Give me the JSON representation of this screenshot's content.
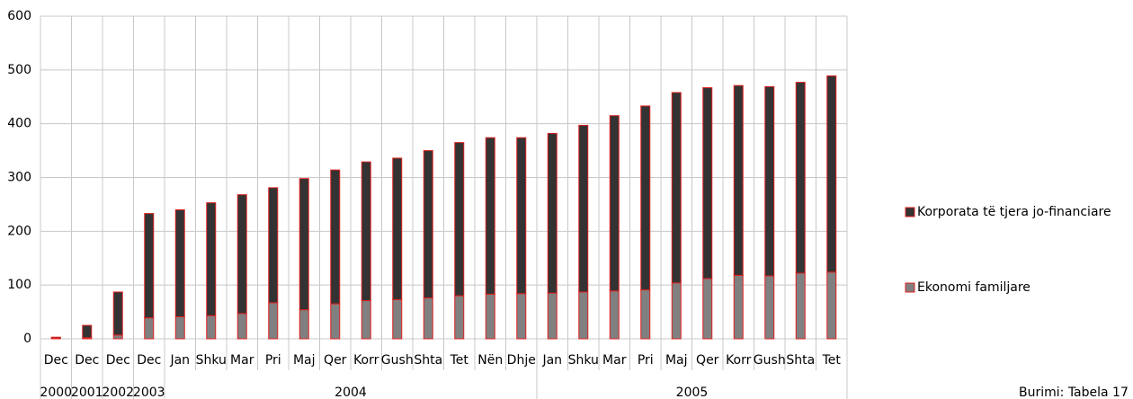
{
  "chart_data": {
    "type": "stacked-bar",
    "categories": [
      "Dec",
      "Dec",
      "Dec",
      "Dec",
      "Jan",
      "Shku",
      "Mar",
      "Pri",
      "Maj",
      "Qer",
      "Korr",
      "Gush",
      "Shta",
      "Tet",
      "Nën",
      "Dhje",
      "Jan",
      "Shku",
      "Mar",
      "Pri",
      "Maj",
      "Qer",
      "Korr",
      "Gush",
      "Shta",
      "Tet"
    ],
    "groups": [
      "2000",
      "2001",
      "2002",
      "2003",
      "2004",
      "2004",
      "2004",
      "2004",
      "2004",
      "2004",
      "2004",
      "2004",
      "2004",
      "2004",
      "2004",
      "2004",
      "2005",
      "2005",
      "2005",
      "2005",
      "2005",
      "2005",
      "2005",
      "2005",
      "2005",
      "2005"
    ],
    "series": [
      {
        "name": "Ekonomi familjare",
        "color": "#808080",
        "values": [
          1,
          2,
          7,
          39,
          41,
          43,
          47,
          67,
          54,
          65,
          71,
          73,
          76,
          80,
          83,
          84,
          85,
          87,
          89,
          91,
          104,
          112,
          118,
          117,
          122,
          124
        ]
      },
      {
        "name": "Korporata të tjera jo-financiare",
        "color": "#333333",
        "values": [
          2,
          23,
          80,
          194,
          199,
          210,
          221,
          214,
          244,
          249,
          258,
          263,
          274,
          285,
          291,
          290,
          297,
          310,
          326,
          342,
          354,
          355,
          353,
          352,
          355,
          365
        ]
      }
    ],
    "edge_color": "#e02020",
    "ylim": [
      0,
      600
    ],
    "yticks": [
      0,
      100,
      200,
      300,
      400,
      500,
      600
    ],
    "grid": true,
    "legend": "right",
    "source": "Burimi: Tabela 17"
  }
}
